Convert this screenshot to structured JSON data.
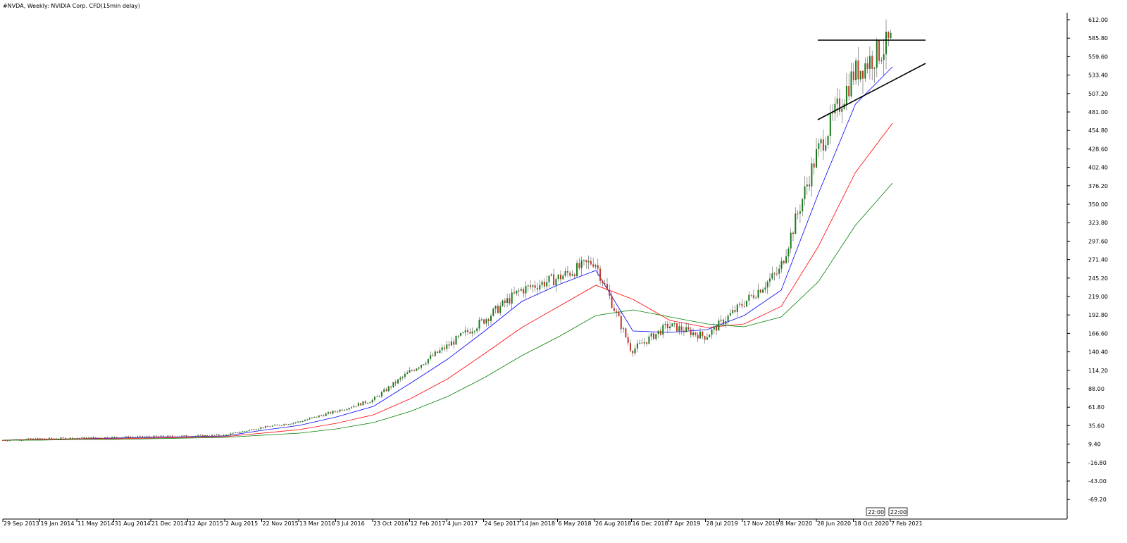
{
  "chart_data": {
    "type": "candlestick",
    "title": "#NVDA, Weekly:  NVIDIA Corp. CFD(15min delay)",
    "ylim": [
      -80,
      620
    ],
    "y_ticks": [
      "612.00",
      "585.80",
      "559.60",
      "533.40",
      "507.20",
      "481.00",
      "454.80",
      "428.60",
      "402.40",
      "376.20",
      "350.00",
      "323.80",
      "297.60",
      "271.40",
      "245.20",
      "219.00",
      "192.80",
      "166.60",
      "140.40",
      "114.20",
      "88.00",
      "61.80",
      "35.60",
      "9.40",
      "-16.80",
      "-43.00",
      "-69.20"
    ],
    "x_ticks": [
      "29 Sep 2013",
      "19 Jan 2014",
      "11 May 2014",
      "31 Aug 2014",
      "21 Dec 2014",
      "12 Apr 2015",
      "2 Aug 2015",
      "22 Nov 2015",
      "13 Mar 2016",
      "3 Jul 2016",
      "23 Oct 2016",
      "12 Feb 2017",
      "4 Jun 2017",
      "24 Sep 2017",
      "14 Jan 2018",
      "6 May 2018",
      "26 Aug 2018",
      "16 Dec 2018",
      "7 Apr 2019",
      "28 Jul 2019",
      "17 Nov 2019",
      "8 Mar 2020",
      "28 Jun 2020",
      "18 Oct 2020",
      "7 Feb 2021"
    ],
    "time_labels": [
      "22:00",
      "22:00"
    ],
    "price_path": [
      [
        "29 Sep 2013",
        15
      ],
      [
        "19 Jan 2014",
        17
      ],
      [
        "11 May 2014",
        18
      ],
      [
        "31 Aug 2014",
        19
      ],
      [
        "21 Dec 2014",
        20
      ],
      [
        "12 Apr 2015",
        21
      ],
      [
        "2 Aug 2015",
        22
      ],
      [
        "22 Nov 2015",
        33
      ],
      [
        "13 Mar 2016",
        41
      ],
      [
        "3 Jul 2016",
        56
      ],
      [
        "23 Oct 2016",
        72
      ],
      [
        "12 Feb 2017",
        112
      ],
      [
        "4 Jun 2017",
        148
      ],
      [
        "24 Sep 2017",
        185
      ],
      [
        "14 Jan 2018",
        228
      ],
      [
        "6 May 2018",
        245
      ],
      [
        "26 Aug 2018",
        270
      ],
      [
        "16 Dec 2018",
        142
      ],
      [
        "7 Apr 2019",
        178
      ],
      [
        "28 Jul 2019",
        162
      ],
      [
        "17 Nov 2019",
        208
      ],
      [
        "8 Mar 2020",
        255
      ],
      [
        "28 Jun 2020",
        420
      ],
      [
        "18 Oct 2020",
        535
      ],
      [
        "7 Feb 2021",
        580
      ]
    ],
    "series": [
      {
        "name": "",
        "color": "#0000ff",
        "values": [
          15,
          16,
          17,
          18,
          19,
          20,
          21,
          29,
          36,
          48,
          63,
          96,
          130,
          170,
          212,
          236,
          256,
          170,
          168,
          172,
          192,
          228,
          365,
          492,
          545
        ]
      },
      {
        "name": "",
        "color": "#ff0000",
        "values": [
          15,
          16,
          17,
          17,
          18,
          19,
          20,
          25,
          30,
          39,
          51,
          74,
          102,
          138,
          175,
          205,
          235,
          215,
          185,
          175,
          180,
          205,
          290,
          395,
          465
        ]
      },
      {
        "name": "",
        "color": "#008000",
        "values": [
          15,
          15,
          16,
          16,
          17,
          18,
          19,
          22,
          25,
          31,
          40,
          56,
          77,
          104,
          135,
          162,
          192,
          200,
          190,
          180,
          176,
          190,
          240,
          320,
          380
        ]
      }
    ],
    "trendlines": [
      {
        "from": [
          "28 Jun 2020",
          583
        ],
        "to": [
          "7 Feb 2021",
          583
        ]
      },
      {
        "from": [
          "28 Jun 2020",
          470
        ],
        "to": [
          "7 Feb 2021",
          550
        ]
      }
    ],
    "grid": false
  }
}
